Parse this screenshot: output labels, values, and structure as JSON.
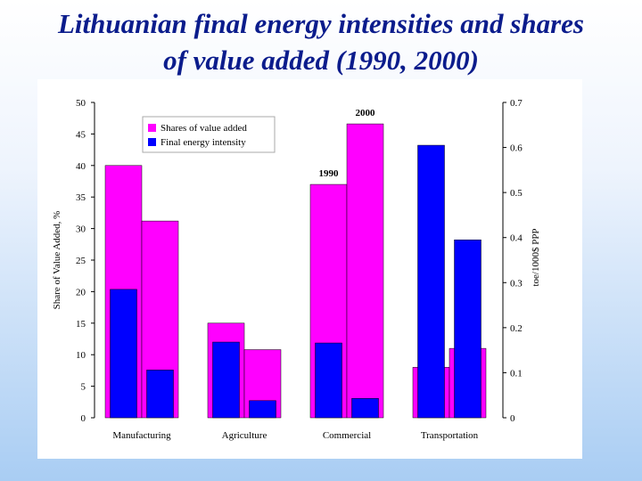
{
  "slide": {
    "title_line1": "Lithuanian final energy intensities and shares",
    "title_line2": "of value added (1990, 2000)"
  },
  "chart_data": {
    "type": "bar",
    "categories": [
      "Manufacturing",
      "Agriculture",
      "Commercial",
      "Transportation"
    ],
    "years": [
      "1990",
      "2000"
    ],
    "series": [
      {
        "name": "Shares of value added",
        "axis": "left",
        "color": "#ff00ff",
        "values": {
          "1990": [
            40,
            15,
            37,
            8
          ],
          "2000": [
            31.2,
            10.8,
            46.6,
            11
          ]
        }
      },
      {
        "name": "Final energy intensity",
        "axis": "right",
        "color": "#0000ff",
        "values": {
          "1990": [
            0.285,
            0.168,
            0.166,
            0.605
          ],
          "2000": [
            0.106,
            0.038,
            0.043,
            0.395
          ]
        }
      }
    ],
    "ylabel_left": "Share of Value Added, %",
    "ylabel_right": "toe/1000$ PPP",
    "ylim_left": [
      0,
      50
    ],
    "yticks_left": [
      "0",
      "5",
      "10",
      "15",
      "20",
      "25",
      "30",
      "35",
      "40",
      "45",
      "50"
    ],
    "ylim_right": [
      0,
      0.7
    ],
    "yticks_right": [
      "0",
      "0.1",
      "0.2",
      "0.3",
      "0.4",
      "0.5",
      "0.6",
      "0.7"
    ],
    "annotations": [
      {
        "text": "1990",
        "category": "Commercial",
        "year": "1990"
      },
      {
        "text": "2000",
        "category": "Commercial",
        "year": "2000"
      }
    ],
    "legend_position": "top-left",
    "grid": false
  }
}
